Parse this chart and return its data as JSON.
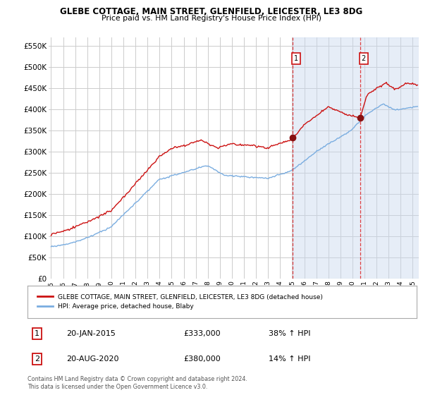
{
  "title": "GLEBE COTTAGE, MAIN STREET, GLENFIELD, LEICESTER, LE3 8DG",
  "subtitle": "Price paid vs. HM Land Registry's House Price Index (HPI)",
  "ylabel_ticks": [
    "£0",
    "£50K",
    "£100K",
    "£150K",
    "£200K",
    "£250K",
    "£300K",
    "£350K",
    "£400K",
    "£450K",
    "£500K",
    "£550K"
  ],
  "ytick_values": [
    0,
    50000,
    100000,
    150000,
    200000,
    250000,
    300000,
    350000,
    400000,
    450000,
    500000,
    550000
  ],
  "ylim": [
    0,
    570000
  ],
  "xlim_start": 1994.8,
  "xlim_end": 2025.5,
  "hpi_color": "#7aade0",
  "price_color": "#cc1111",
  "marker1_year": 2015.05,
  "marker1_value": 333000,
  "marker2_year": 2020.63,
  "marker2_value": 380000,
  "legend_label_red": "GLEBE COTTAGE, MAIN STREET, GLENFIELD, LEICESTER, LE3 8DG (detached house)",
  "legend_label_blue": "HPI: Average price, detached house, Blaby",
  "footnote": "Contains HM Land Registry data © Crown copyright and database right 2024.\nThis data is licensed under the Open Government Licence v3.0.",
  "bg_color": "#ffffff",
  "plot_bg_color": "#ffffff",
  "grid_color": "#cccccc",
  "vline_color": "#dd2222",
  "shade_color": "#c8d8ee",
  "shade_alpha": 0.45
}
